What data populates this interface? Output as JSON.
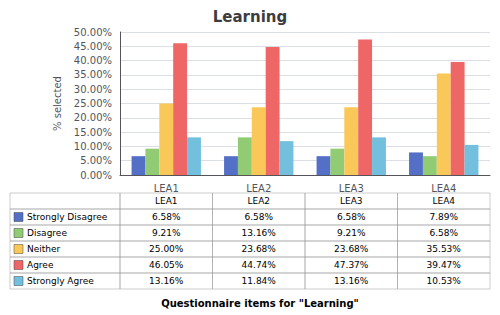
{
  "chart_data": {
    "type": "bar",
    "title": "Learning",
    "xlabel": "Questionnaire items for \"Learning\"",
    "ylabel": "% selected",
    "categories": [
      "LEA1",
      "LEA2",
      "LEA3",
      "LEA4"
    ],
    "series": [
      {
        "name": "Strongly Disagree",
        "values": [
          6.58,
          6.58,
          6.58,
          7.89
        ],
        "value_labels": [
          "6.58%",
          "6.58%",
          "6.58%",
          "7.89%"
        ]
      },
      {
        "name": "Disagree",
        "values": [
          9.21,
          13.16,
          9.21,
          6.58
        ],
        "value_labels": [
          "9.21%",
          "13.16%",
          "9.21%",
          "6.58%"
        ]
      },
      {
        "name": "Neither",
        "values": [
          25.0,
          23.68,
          23.68,
          35.53
        ],
        "value_labels": [
          "25.00%",
          "23.68%",
          "23.68%",
          "35.53%"
        ]
      },
      {
        "name": "Agree",
        "values": [
          46.05,
          44.74,
          47.37,
          39.47
        ],
        "value_labels": [
          "46.05%",
          "44.74%",
          "47.37%",
          "39.47%"
        ]
      },
      {
        "name": "Strongly Agree",
        "values": [
          13.16,
          11.84,
          13.16,
          10.53
        ],
        "value_labels": [
          "13.16%",
          "11.84%",
          "13.16%",
          "10.53%"
        ]
      }
    ],
    "ylim": [
      0,
      50
    ],
    "yticks": [
      {
        "value": 0,
        "label": "0.00%"
      },
      {
        "value": 5,
        "label": "5.00%"
      },
      {
        "value": 10,
        "label": "10.00%"
      },
      {
        "value": 15,
        "label": "15.00%"
      },
      {
        "value": 20,
        "label": "20.00%"
      },
      {
        "value": 25,
        "label": "25.00%"
      },
      {
        "value": 30,
        "label": "30.00%"
      },
      {
        "value": 35,
        "label": "35.00%"
      },
      {
        "value": 40,
        "label": "40.00%"
      },
      {
        "value": 45,
        "label": "45.00%"
      },
      {
        "value": 50,
        "label": "50.00%"
      }
    ],
    "grid": true
  }
}
